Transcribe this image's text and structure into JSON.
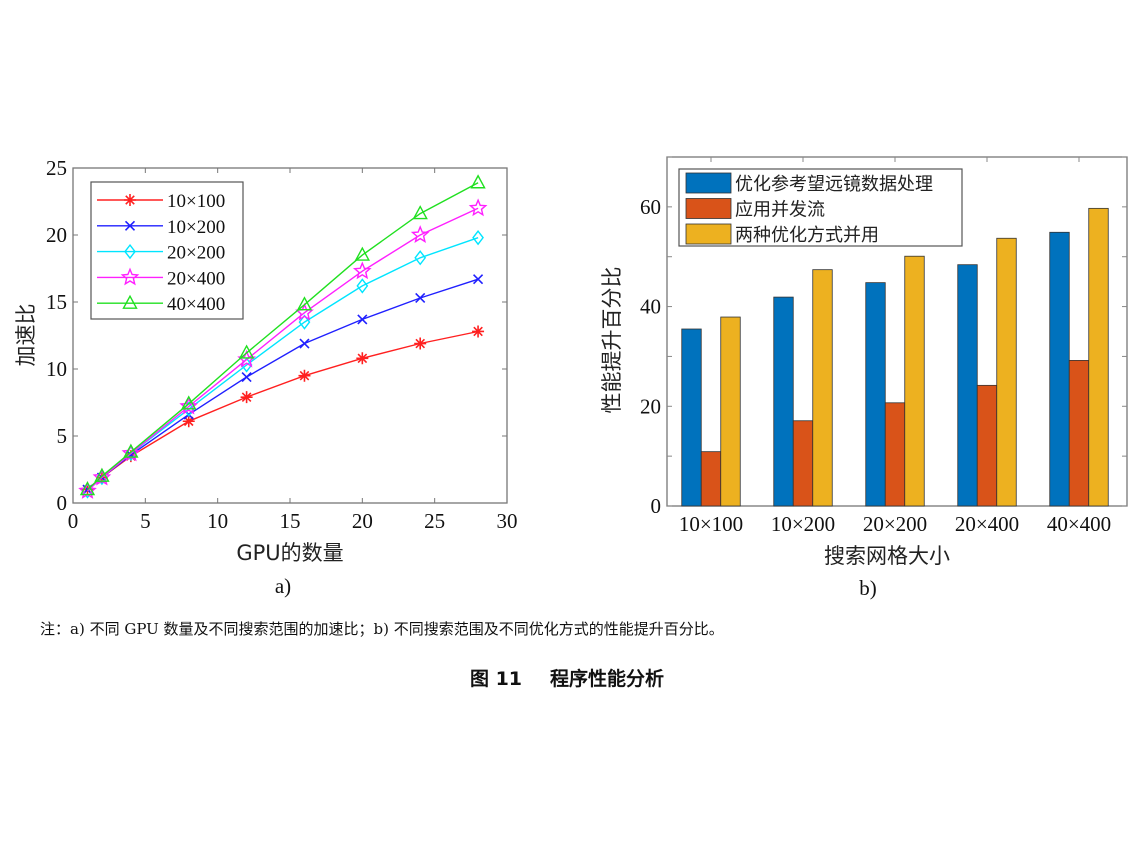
{
  "chart_data": [
    {
      "type": "line",
      "panel_label": "a)",
      "xlabel": "GPU的数量",
      "ylabel": "加速比",
      "xlim": [
        0,
        30
      ],
      "ylim": [
        0,
        25
      ],
      "xticks": [
        "0",
        "5",
        "10",
        "15",
        "20",
        "25",
        "30"
      ],
      "yticks": [
        "0",
        "5",
        "10",
        "15",
        "20",
        "25"
      ],
      "legend_position": "top-left",
      "x": [
        1,
        2,
        4,
        8,
        12,
        16,
        20,
        24,
        28
      ],
      "series": [
        {
          "name": "10×100",
          "color": "#ff2020",
          "marker": "asterisk",
          "values": [
            1.0,
            1.9,
            3.5,
            6.1,
            7.9,
            9.5,
            10.8,
            11.9,
            12.8
          ]
        },
        {
          "name": "10×200",
          "color": "#2020ff",
          "marker": "x",
          "values": [
            1.0,
            1.9,
            3.6,
            6.6,
            9.4,
            11.9,
            13.7,
            15.3,
            16.7
          ]
        },
        {
          "name": "20×200",
          "color": "#00e5ff",
          "marker": "diamond",
          "values": [
            0.9,
            1.9,
            3.7,
            7.0,
            10.3,
            13.5,
            16.2,
            18.3,
            19.8
          ]
        },
        {
          "name": "20×400",
          "color": "#ff20ff",
          "marker": "star",
          "values": [
            0.9,
            1.9,
            3.7,
            7.2,
            10.7,
            14.2,
            17.3,
            20.0,
            22.0
          ]
        },
        {
          "name": "40×400",
          "color": "#20e020",
          "marker": "triangle",
          "values": [
            1.0,
            2.0,
            3.8,
            7.4,
            11.2,
            14.8,
            18.5,
            21.6,
            23.9
          ]
        }
      ]
    },
    {
      "type": "bar",
      "panel_label": "b)",
      "xlabel": "搜索网格大小",
      "ylabel": "性能提升百分比",
      "ylim": [
        0,
        70
      ],
      "yticks": [
        "0",
        "20",
        "40",
        "60"
      ],
      "legend_position": "top-left",
      "categories": [
        "10×100",
        "10×200",
        "20×200",
        "20×400",
        "40×400"
      ],
      "series": [
        {
          "name": "优化参考望远镜数据处理",
          "color": "#0072bd",
          "values": [
            35.5,
            41.9,
            44.8,
            48.4,
            54.9
          ]
        },
        {
          "name": "应用并发流",
          "color": "#d95319",
          "values": [
            10.9,
            17.1,
            20.7,
            24.2,
            29.2
          ]
        },
        {
          "name": "两种优化方式并用",
          "color": "#edb120",
          "values": [
            37.9,
            47.4,
            50.1,
            53.7,
            59.7
          ]
        }
      ]
    }
  ],
  "note": "注：a) 不同 GPU 数量及不同搜索范围的加速比；b) 不同搜索范围及不同优化方式的性能提升百分比。",
  "caption": {
    "number": "图 11",
    "title": "程序性能分析"
  }
}
